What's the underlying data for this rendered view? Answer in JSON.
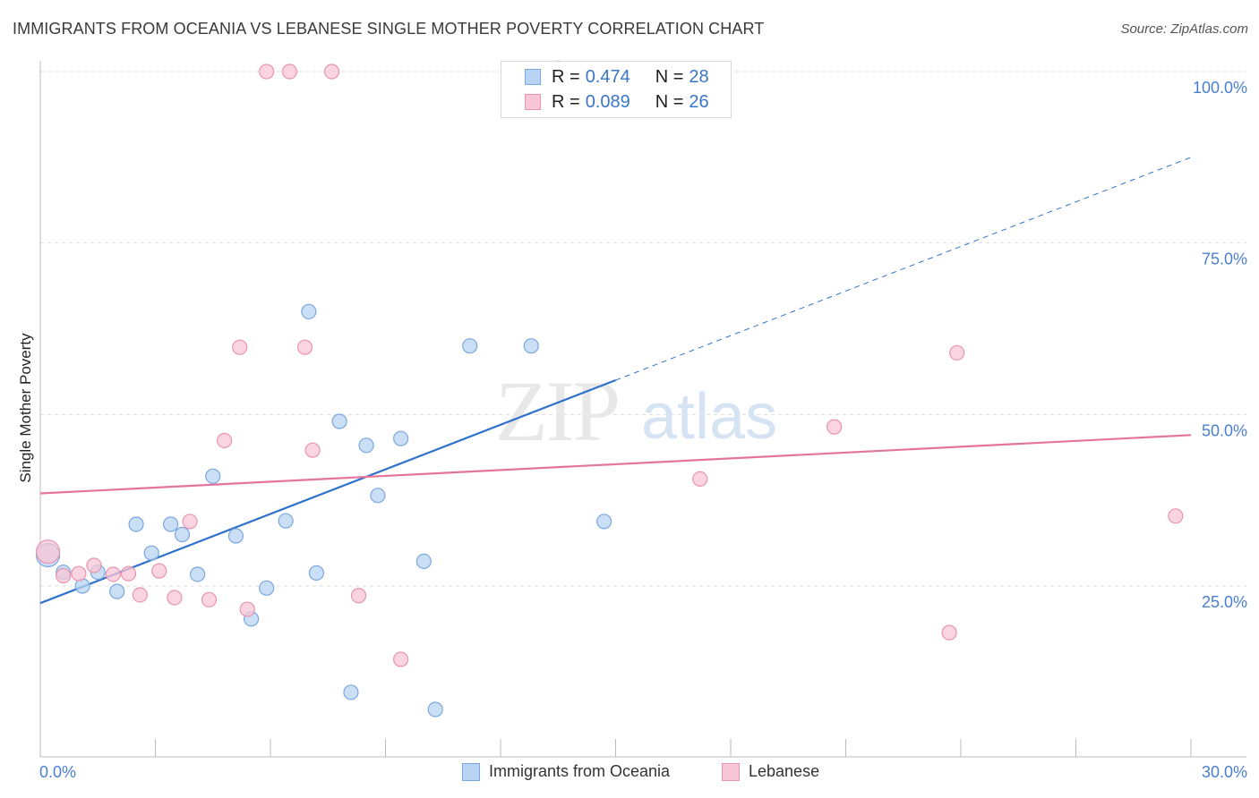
{
  "header": {
    "title": "IMMIGRANTS FROM OCEANIA VS LEBANESE SINGLE MOTHER POVERTY CORRELATION CHART",
    "source": "Source: ZipAtlas.com"
  },
  "watermark": {
    "zip": "ZIP",
    "atlas": "atlas"
  },
  "legend_top": {
    "rows": [
      {
        "r_label": "R =",
        "r_value": "0.474",
        "n_label": "N =",
        "n_value": "28"
      },
      {
        "r_label": "R =",
        "r_value": "0.089",
        "n_label": "N =",
        "n_value": "26"
      }
    ]
  },
  "legend_bottom": {
    "items": [
      {
        "label": "Immigrants from Oceania"
      },
      {
        "label": "Lebanese"
      }
    ]
  },
  "colors": {
    "blue_fill": "#b8d3f3",
    "blue_stroke": "#7aa7dd",
    "blue_line": "#2f72cc",
    "pink_fill": "#f8c6d6",
    "pink_stroke": "#e894b0",
    "pink_line": "#e4749c",
    "tick_text": "#4a7fd0",
    "grid": "#dddddd"
  },
  "chart_data": {
    "type": "scatter",
    "title": "IMMIGRANTS FROM OCEANIA VS LEBANESE SINGLE MOTHER POVERTY CORRELATION CHART",
    "xlabel": "",
    "ylabel": "Single Mother Poverty",
    "xlim": [
      0,
      30
    ],
    "ylim": [
      0,
      103
    ],
    "x_tick_labels": [
      "0.0%",
      "30.0%"
    ],
    "y_ticks": [
      25,
      50,
      75,
      100
    ],
    "y_tick_labels": [
      "25.0%",
      "50.0%",
      "75.0%",
      "100.0%"
    ],
    "grid": true,
    "legend_position": "bottom",
    "series": [
      {
        "name": "Immigrants from Oceania",
        "r": 0.474,
        "n": 28,
        "trend": {
          "x": [
            0,
            15
          ],
          "y": [
            22.5,
            55.0
          ],
          "dashed_to": [
            30,
            87.5
          ]
        },
        "points": [
          [
            0.2,
            29.5
          ],
          [
            0.6,
            27.0
          ],
          [
            1.1,
            25.0
          ],
          [
            1.5,
            27.0
          ],
          [
            2.0,
            24.2
          ],
          [
            2.5,
            34.0
          ],
          [
            2.9,
            29.8
          ],
          [
            3.4,
            34.0
          ],
          [
            3.7,
            32.5
          ],
          [
            4.1,
            26.7
          ],
          [
            4.5,
            41.0
          ],
          [
            5.1,
            32.3
          ],
          [
            5.5,
            20.2
          ],
          [
            5.9,
            24.7
          ],
          [
            6.4,
            34.5
          ],
          [
            7.0,
            65.0
          ],
          [
            7.2,
            26.9
          ],
          [
            7.8,
            49.0
          ],
          [
            8.1,
            9.5
          ],
          [
            8.5,
            45.5
          ],
          [
            8.8,
            38.2
          ],
          [
            9.4,
            46.5
          ],
          [
            10.0,
            28.6
          ],
          [
            10.3,
            7.0
          ],
          [
            11.2,
            60.0
          ],
          [
            12.8,
            60.0
          ],
          [
            13.5,
            100.5
          ],
          [
            14.7,
            34.4
          ]
        ]
      },
      {
        "name": "Lebanese",
        "r": 0.089,
        "n": 26,
        "trend": {
          "x": [
            0,
            30
          ],
          "y": [
            38.5,
            47.0
          ]
        },
        "points": [
          [
            0.2,
            30.0
          ],
          [
            0.6,
            26.5
          ],
          [
            1.0,
            26.8
          ],
          [
            1.4,
            28.0
          ],
          [
            1.9,
            26.7
          ],
          [
            2.3,
            26.8
          ],
          [
            2.6,
            23.7
          ],
          [
            3.1,
            27.2
          ],
          [
            3.5,
            23.3
          ],
          [
            3.9,
            34.4
          ],
          [
            4.4,
            23.0
          ],
          [
            4.8,
            46.2
          ],
          [
            5.2,
            59.8
          ],
          [
            5.4,
            21.6
          ],
          [
            5.9,
            100.0
          ],
          [
            6.5,
            100.0
          ],
          [
            6.9,
            59.8
          ],
          [
            7.1,
            44.8
          ],
          [
            7.6,
            100.0
          ],
          [
            8.3,
            23.6
          ],
          [
            9.4,
            14.3
          ],
          [
            17.2,
            40.6
          ],
          [
            20.7,
            48.2
          ],
          [
            23.7,
            18.2
          ],
          [
            23.9,
            59.0
          ],
          [
            29.6,
            35.2
          ]
        ]
      }
    ]
  }
}
